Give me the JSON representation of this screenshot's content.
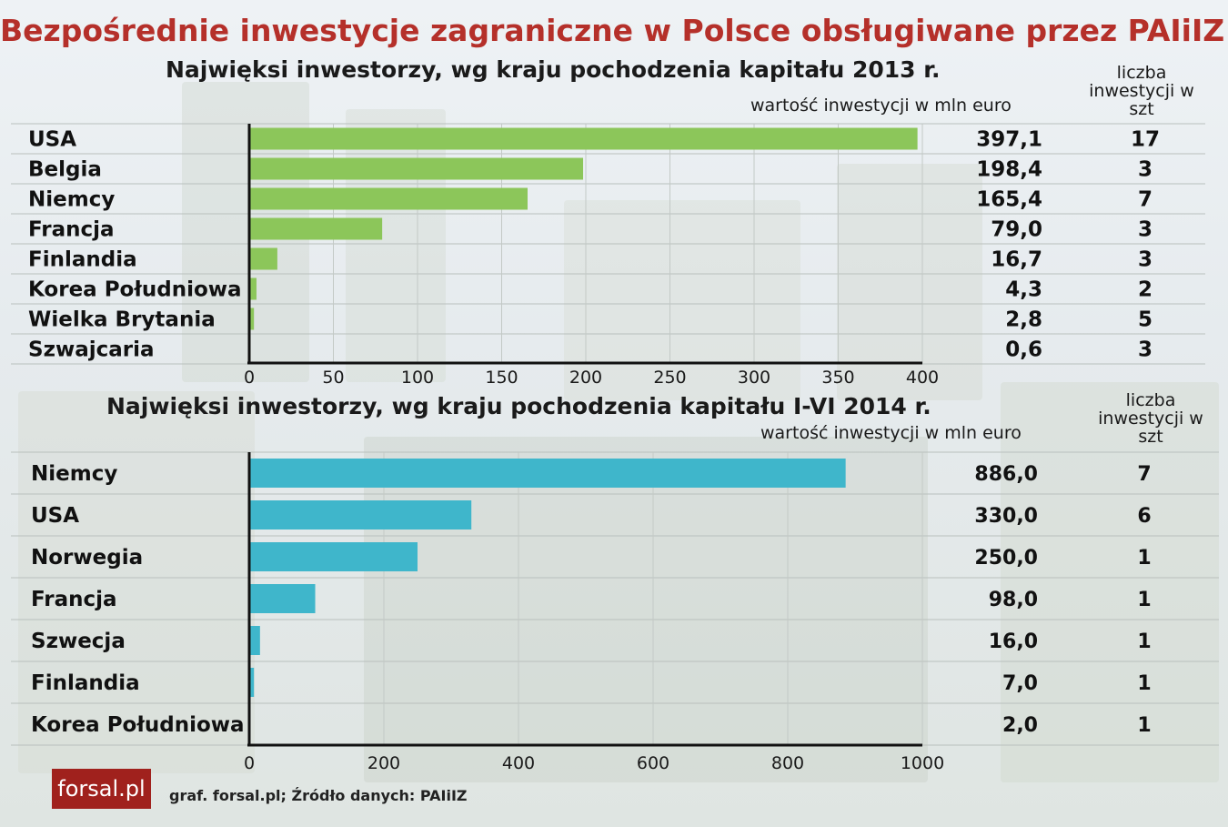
{
  "title": "Bezpośrednie inwestycje zagraniczne w Polsce obsługiwane przez PAIiIZ",
  "source": "graf. forsal.pl;  Źródło danych: PAIiIZ",
  "logo_text": "forsal.pl",
  "colors": {
    "title": "#b5302a",
    "bar_2013": "#8cc65a",
    "bar_2014": "#3fb6cb",
    "logo_bg": "#a0211d"
  },
  "chart_data": [
    {
      "type": "bar",
      "orientation": "horizontal",
      "title": "Najwięksi inwestorzy, wg kraju pochodzenia kapitału 2013 r.",
      "value_label": "wartość inwestycji  w mln euro",
      "count_label": "liczba inwestycji w szt",
      "categories": [
        "USA",
        "Belgia",
        "Niemcy",
        "Francja",
        "Finlandia",
        "Korea Południowa",
        "Wielka Brytania",
        "Szwajcaria"
      ],
      "values": [
        397.1,
        198.4,
        165.4,
        79.0,
        16.7,
        4.3,
        2.8,
        0.6
      ],
      "value_labels": [
        "397,1",
        "198,4",
        "165,4",
        "79,0",
        "16,7",
        "4,3",
        "2,8",
        "0,6"
      ],
      "counts": [
        "17",
        "3",
        "7",
        "3",
        "3",
        "2",
        "5",
        "3"
      ],
      "xlim": [
        0,
        400
      ],
      "xticks": [
        "0",
        "50",
        "100",
        "150",
        "200",
        "250",
        "300",
        "350",
        "400"
      ],
      "grid": true
    },
    {
      "type": "bar",
      "orientation": "horizontal",
      "title": "Najwięksi inwestorzy, wg kraju pochodzenia kapitału I-VI 2014 r.",
      "value_label": "wartość inwestycji  w mln euro",
      "count_label": "liczba inwestycji w szt",
      "categories": [
        "Niemcy",
        "USA",
        "Norwegia",
        "Francja",
        "Szwecja",
        "Finlandia",
        "Korea Południowa"
      ],
      "values": [
        886.0,
        330.0,
        250.0,
        98.0,
        16.0,
        7.0,
        2.0
      ],
      "value_labels": [
        "886,0",
        "330,0",
        "250,0",
        "98,0",
        "16,0",
        "7,0",
        "2,0"
      ],
      "counts": [
        "7",
        "6",
        "1",
        "1",
        "1",
        "1",
        "1"
      ],
      "xlim": [
        0,
        1000
      ],
      "xticks": [
        "0",
        "200",
        "400",
        "600",
        "800",
        "1000"
      ],
      "grid": true
    }
  ]
}
